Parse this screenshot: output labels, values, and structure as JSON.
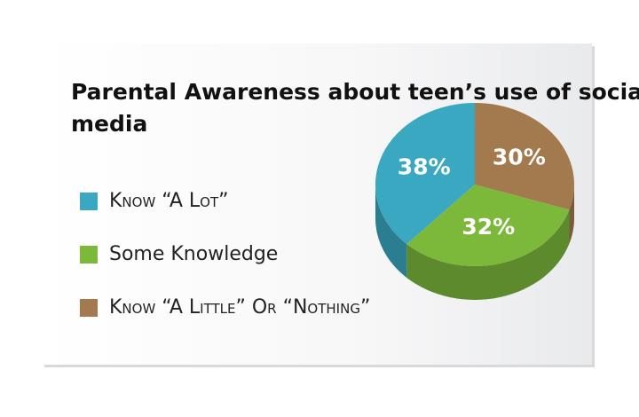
{
  "chart_data": {
    "type": "pie",
    "title": "Parental Awareness about teen’s use of social media",
    "categories": [
      "Know “A Lot”",
      "Some Knowledge",
      "Know “A Little” Or “Nothing”"
    ],
    "values": [
      38,
      32,
      30
    ],
    "value_labels": [
      "38%",
      "32%",
      "30%"
    ],
    "colors": [
      "#3aa8c1",
      "#7cb93b",
      "#a27a4e"
    ]
  }
}
